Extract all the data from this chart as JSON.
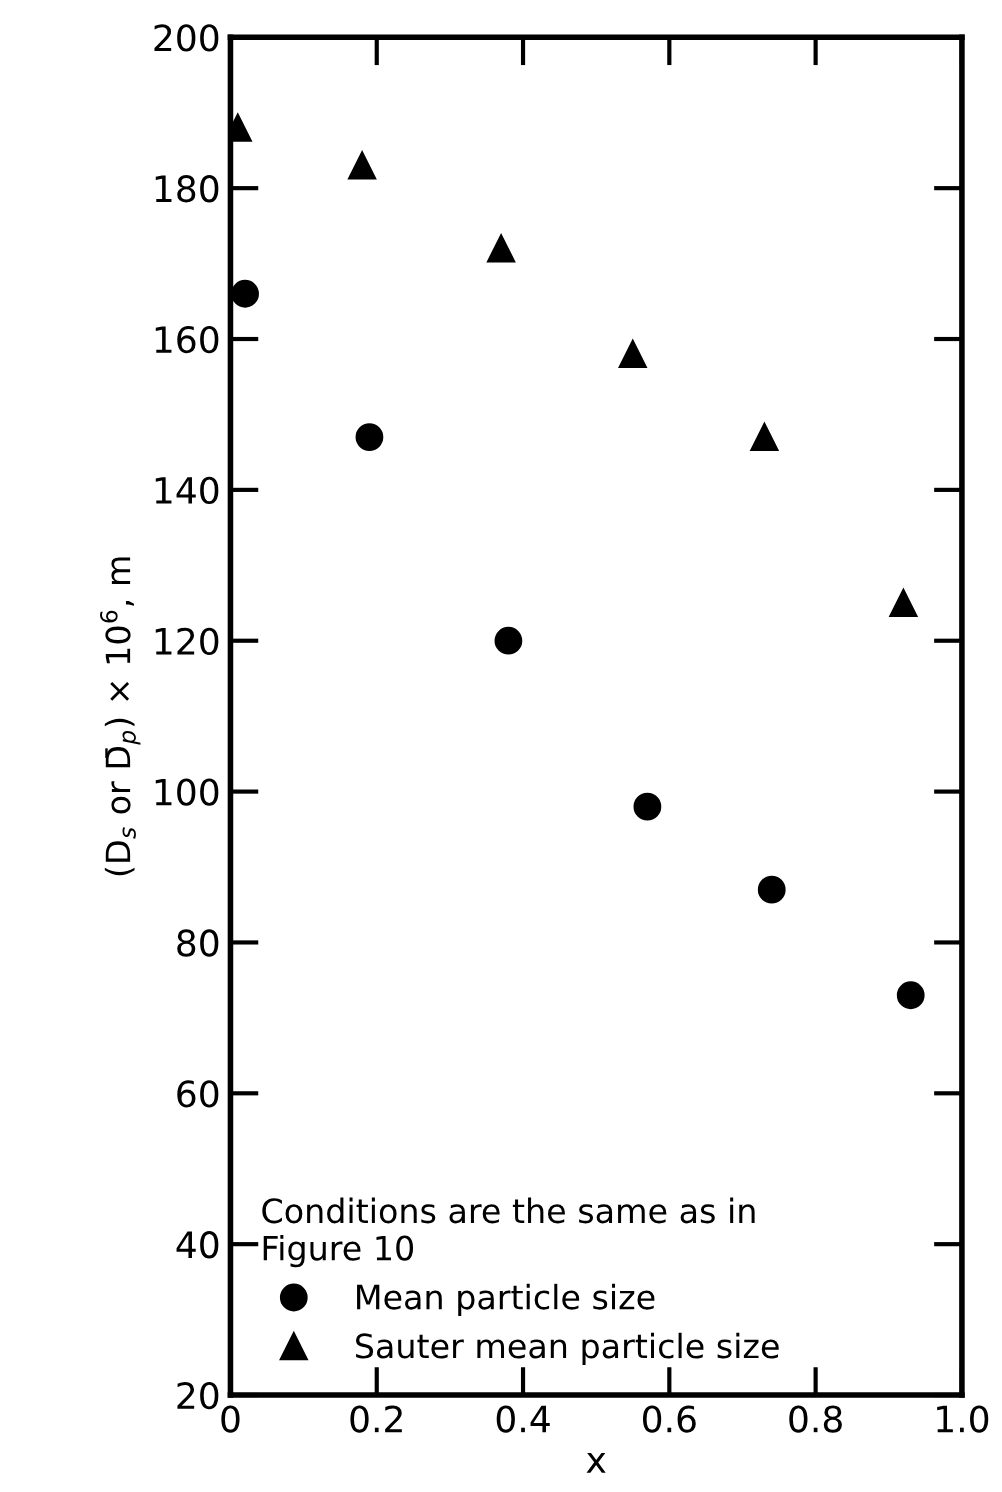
{
  "chart_data": {
    "type": "scatter",
    "xlabel": "x",
    "ylabel": "(D$_{s}$ or D̄$_{p}$) × 10$^{6}$, m",
    "legend_title": "Conditions are the same as in\nFigure 10",
    "series": [
      {
        "name": "Mean particle size",
        "color": "#000000",
        "marker": "circle",
        "x": [
          0.02,
          0.19,
          0.38,
          0.57,
          0.74,
          0.93
        ],
        "values": [
          166,
          147,
          120,
          98,
          87,
          73
        ]
      },
      {
        "name": "Sauter mean particle size",
        "color": "#000000",
        "marker": "triangle",
        "x": [
          0.01,
          0.18,
          0.37,
          0.55,
          0.73,
          0.92
        ],
        "values": [
          188,
          183,
          172,
          158,
          147,
          125
        ]
      }
    ],
    "xlim": [
      0,
      1.0
    ],
    "ylim": [
      20,
      200
    ],
    "xticks": [
      {
        "value": 0,
        "label": "0"
      },
      0.2,
      0.4,
      0.6,
      0.8,
      {
        "value": 1.0,
        "label": "1.0"
      }
    ],
    "yticks": [
      20,
      40,
      60,
      80,
      100,
      120,
      140,
      160,
      180,
      200
    ],
    "grid": false,
    "legend": "bottom left"
  }
}
